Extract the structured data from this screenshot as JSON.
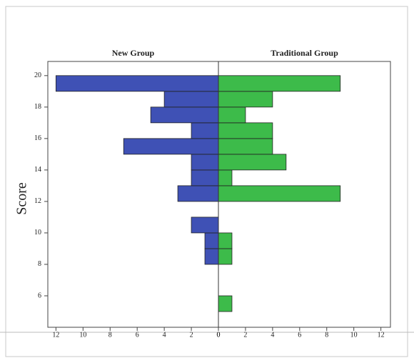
{
  "chart_data": {
    "type": "histogram",
    "orientation": "horizontal",
    "y_label": "Score",
    "bins": [
      5,
      6,
      7,
      8,
      9,
      10,
      11,
      12,
      13,
      14,
      15,
      16,
      17,
      18,
      19,
      20
    ],
    "series": [
      {
        "name": "New Group",
        "color": "#3f51b5",
        "values": [
          0,
          0,
          0,
          1,
          1,
          2,
          0,
          3,
          2,
          2,
          7,
          2,
          5,
          4,
          12
        ]
      },
      {
        "name": "Traditional Group",
        "color": "#3dbb4a",
        "values": [
          1,
          0,
          0,
          1,
          1,
          0,
          0,
          9,
          1,
          5,
          4,
          4,
          2,
          4,
          9
        ]
      }
    ],
    "xlim": [
      0,
      12.6
    ],
    "xticks": [
      0,
      2,
      4,
      6,
      8,
      10,
      12
    ],
    "ylim": [
      4,
      20.9
    ],
    "yticks": [
      6,
      8,
      10,
      12,
      14,
      16,
      18,
      20
    ],
    "grid": false
  }
}
